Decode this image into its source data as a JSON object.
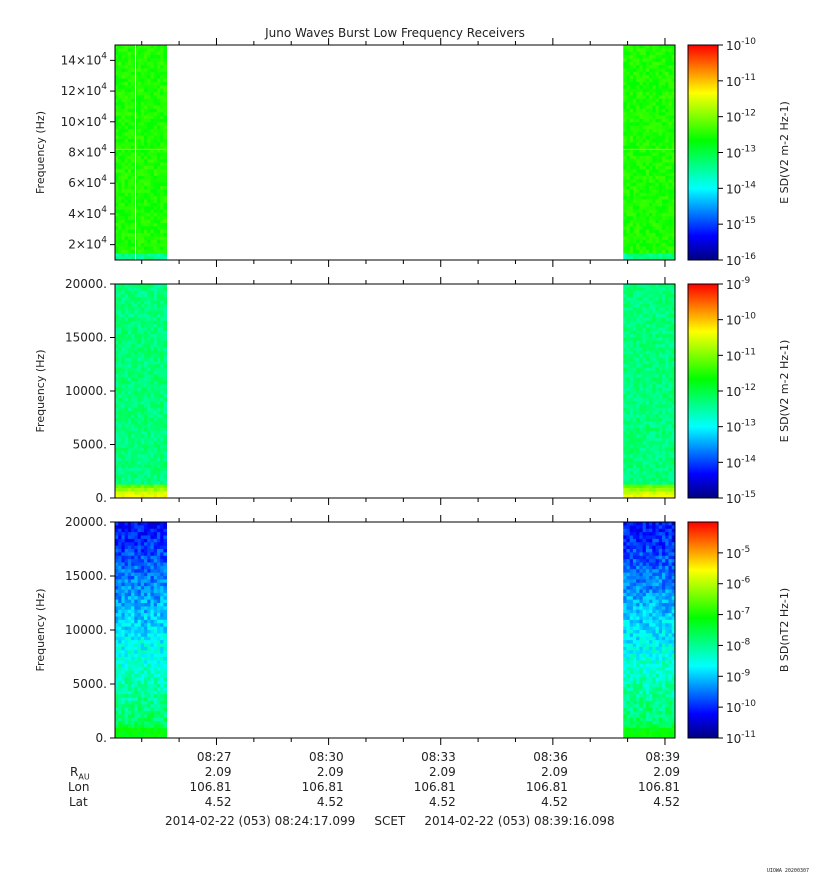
{
  "title": "Juno Waves Burst Low Frequency Receivers",
  "chart_data": {
    "type": "heatmap",
    "title": "Juno Waves Burst Low Frequency Receivers",
    "x_tick_labels": [
      "08:27",
      "08:30",
      "08:33",
      "08:36",
      "08:39"
    ],
    "time_range": [
      "2014-02-22 (053) 08:24:17.099",
      "2014-02-22 (053) 08:39:16.098"
    ],
    "data_intervals": [
      [
        "08:24:17",
        "08:25:40"
      ],
      [
        "08:37:53",
        "08:39:16"
      ]
    ],
    "panels": [
      {
        "name": "panel-1",
        "ylabel": "Frequency (Hz)",
        "ylim": [
          10000,
          150000
        ],
        "y_ticks": [
          {
            "value": 20000,
            "mantissa": "2×10",
            "exp": "4"
          },
          {
            "value": 40000,
            "mantissa": "4×10",
            "exp": "4"
          },
          {
            "value": 60000,
            "mantissa": "6×10",
            "exp": "4"
          },
          {
            "value": 80000,
            "mantissa": "8×10",
            "exp": "4"
          },
          {
            "value": 100000,
            "mantissa": "10×10",
            "exp": "4"
          },
          {
            "value": 120000,
            "mantissa": "12×10",
            "exp": "4"
          },
          {
            "value": 140000,
            "mantissa": "14×10",
            "exp": "4"
          }
        ],
        "colorbar_label": "E SD(V2 m-2 Hz-1)",
        "colorbar_range_exp": [
          -16,
          -10
        ],
        "colorbar_ticks_exp": [
          "-10",
          "-11",
          "-12",
          "-13",
          "-14",
          "-15",
          "-16"
        ],
        "dominant_level": "~1e-13.6 (green)",
        "line_frequency_hz": 82000,
        "vertical_line_time": "08:24:50"
      },
      {
        "name": "panel-2",
        "ylabel": "Frequency (Hz)",
        "ylim": [
          0,
          20000
        ],
        "y_ticks": [
          "0.",
          "5000.",
          "10000.",
          "15000.",
          "20000."
        ],
        "y_tick_values": [
          0,
          5000,
          10000,
          15000,
          20000
        ],
        "colorbar_label": "E SD(V2 m-2 Hz-1)",
        "colorbar_range_exp": [
          -15,
          -9
        ],
        "colorbar_ticks_exp": [
          "-9",
          "-10",
          "-11",
          "-12",
          "-13",
          "-14",
          "-15"
        ],
        "dominant_level": "~1e-13 (cyan-green)",
        "low_freq_enhancement_hz": 1000
      },
      {
        "name": "panel-3",
        "ylabel": "Frequency (Hz)",
        "ylim": [
          0,
          20000
        ],
        "y_ticks": [
          "0.",
          "5000.",
          "10000.",
          "15000.",
          "20000."
        ],
        "y_tick_values": [
          0,
          5000,
          10000,
          15000,
          20000
        ],
        "colorbar_label": "B SD(nT2 Hz-1)",
        "colorbar_range_exp": [
          -11,
          -4
        ],
        "colorbar_ticks_exp": [
          "-5",
          "-6",
          "-7",
          "-8",
          "-9",
          "-10",
          "-11"
        ],
        "dominant_level": "~1e-10 (blue) at high freq, ~1e-8.5 (cyan/green) near 0 Hz"
      }
    ]
  },
  "ephemeris": {
    "labels": [
      "R",
      "Lon",
      "Lat"
    ],
    "r_subscript": "AU",
    "R": [
      "2.09",
      "2.09",
      "2.09",
      "2.09",
      "2.09"
    ],
    "Lon": [
      "106.81",
      "106.81",
      "106.81",
      "106.81",
      "106.81"
    ],
    "Lat": [
      "4.52",
      "4.52",
      "4.52",
      "4.52",
      "4.52"
    ]
  },
  "footer": {
    "start": "2014-02-22 (053) 08:24:17.099",
    "frame": "SCET",
    "end": "2014-02-22 (053) 08:39:16.098"
  },
  "stamp": "UIOWA 20200307",
  "colors": {
    "colormap": [
      "#000080",
      "#0000ff",
      "#0080ff",
      "#00ffff",
      "#00ff80",
      "#00ff00",
      "#80ff00",
      "#ffff00",
      "#ff8000",
      "#ff0000"
    ]
  }
}
